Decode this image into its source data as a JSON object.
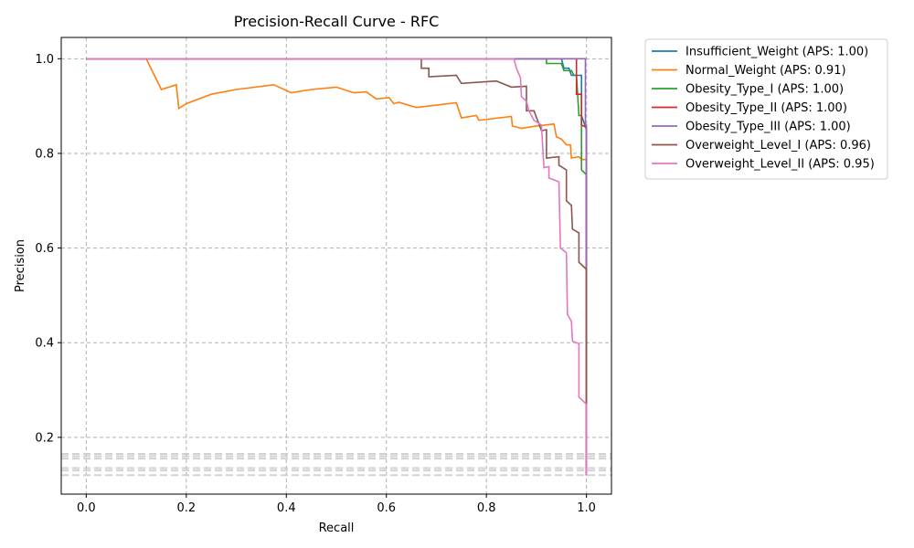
{
  "chart_data": {
    "type": "line",
    "title": "Precision-Recall Curve - RFC",
    "xlabel": "Recall",
    "ylabel": "Precision",
    "xlim": [
      -0.05,
      1.05
    ],
    "ylim": [
      0.08,
      1.045
    ],
    "xticks": [
      0.0,
      0.2,
      0.4,
      0.6,
      0.8,
      1.0
    ],
    "yticks": [
      0.2,
      0.4,
      0.6,
      0.8,
      1.0
    ],
    "grid": true,
    "legend_position": "outside-top-right",
    "baselines": [
      0.12,
      0.13,
      0.135,
      0.155,
      0.16,
      0.165
    ],
    "series": [
      {
        "name": "Insufficient_Weight (APS: 1.00)",
        "color": "#1f77b4",
        "points": [
          [
            0,
            1
          ],
          [
            0.95,
            1
          ],
          [
            0.955,
            0.98
          ],
          [
            0.965,
            0.98
          ],
          [
            0.97,
            0.965
          ],
          [
            0.99,
            0.965
          ],
          [
            0.99,
            0.88
          ],
          [
            1.0,
            0.85
          ],
          [
            1.0,
            0.12
          ]
        ]
      },
      {
        "name": "Normal_Weight (APS: 0.91)",
        "color": "#ff7f0e",
        "points": [
          [
            0,
            1
          ],
          [
            0.12,
            1
          ],
          [
            0.15,
            0.935
          ],
          [
            0.18,
            0.945
          ],
          [
            0.185,
            0.895
          ],
          [
            0.2,
            0.905
          ],
          [
            0.25,
            0.925
          ],
          [
            0.3,
            0.935
          ],
          [
            0.375,
            0.945
          ],
          [
            0.41,
            0.928
          ],
          [
            0.45,
            0.935
          ],
          [
            0.5,
            0.94
          ],
          [
            0.535,
            0.928
          ],
          [
            0.56,
            0.93
          ],
          [
            0.58,
            0.915
          ],
          [
            0.605,
            0.918
          ],
          [
            0.615,
            0.905
          ],
          [
            0.625,
            0.908
          ],
          [
            0.66,
            0.897
          ],
          [
            0.7,
            0.902
          ],
          [
            0.74,
            0.907
          ],
          [
            0.75,
            0.875
          ],
          [
            0.78,
            0.88
          ],
          [
            0.785,
            0.87
          ],
          [
            0.85,
            0.878
          ],
          [
            0.852,
            0.858
          ],
          [
            0.87,
            0.853
          ],
          [
            0.9,
            0.858
          ],
          [
            0.935,
            0.862
          ],
          [
            0.94,
            0.835
          ],
          [
            0.95,
            0.83
          ],
          [
            0.96,
            0.818
          ],
          [
            0.968,
            0.818
          ],
          [
            0.97,
            0.79
          ],
          [
            0.985,
            0.793
          ],
          [
            0.99,
            0.787
          ],
          [
            1.0,
            0.787
          ],
          [
            1.0,
            0.12
          ]
        ]
      },
      {
        "name": "Obesity_Type_I (APS: 1.00)",
        "color": "#2ca02c",
        "points": [
          [
            0,
            1
          ],
          [
            0.92,
            1
          ],
          [
            0.92,
            0.99
          ],
          [
            0.95,
            0.99
          ],
          [
            0.955,
            0.975
          ],
          [
            0.97,
            0.975
          ],
          [
            0.975,
            0.965
          ],
          [
            0.98,
            0.965
          ],
          [
            0.985,
            0.88
          ],
          [
            0.99,
            0.88
          ],
          [
            0.99,
            0.765
          ],
          [
            1.0,
            0.755
          ],
          [
            1.0,
            0.12
          ]
        ]
      },
      {
        "name": "Obesity_Type_II (APS: 1.00)",
        "color": "#d62728",
        "points": [
          [
            0,
            1
          ],
          [
            0.98,
            1
          ],
          [
            0.98,
            0.925
          ],
          [
            0.99,
            0.925
          ],
          [
            0.99,
            0.86
          ],
          [
            1.0,
            0.855
          ],
          [
            1.0,
            0.12
          ]
        ]
      },
      {
        "name": "Obesity_Type_III (APS: 1.00)",
        "color": "#9467bd",
        "points": [
          [
            0,
            1
          ],
          [
            0.998,
            1
          ],
          [
            0.998,
            0.86
          ],
          [
            1.0,
            0.86
          ],
          [
            1.0,
            0.12
          ]
        ]
      },
      {
        "name": "Overweight_Level_I (APS: 0.96)",
        "color": "#8c564b",
        "points": [
          [
            0,
            1
          ],
          [
            0.67,
            1
          ],
          [
            0.67,
            0.98
          ],
          [
            0.685,
            0.98
          ],
          [
            0.685,
            0.962
          ],
          [
            0.74,
            0.965
          ],
          [
            0.75,
            0.948
          ],
          [
            0.82,
            0.953
          ],
          [
            0.85,
            0.94
          ],
          [
            0.88,
            0.942
          ],
          [
            0.88,
            0.89
          ],
          [
            0.895,
            0.89
          ],
          [
            0.91,
            0.848
          ],
          [
            0.92,
            0.85
          ],
          [
            0.92,
            0.79
          ],
          [
            0.945,
            0.793
          ],
          [
            0.945,
            0.775
          ],
          [
            0.96,
            0.765
          ],
          [
            0.96,
            0.7
          ],
          [
            0.97,
            0.69
          ],
          [
            0.972,
            0.64
          ],
          [
            0.985,
            0.632
          ],
          [
            0.985,
            0.57
          ],
          [
            1.0,
            0.555
          ],
          [
            1.0,
            0.12
          ]
        ]
      },
      {
        "name": "Overweight_Level_II (APS: 0.95)",
        "color": "#e377c2",
        "points": [
          [
            0,
            1
          ],
          [
            0.855,
            1
          ],
          [
            0.86,
            0.98
          ],
          [
            0.868,
            0.96
          ],
          [
            0.87,
            0.92
          ],
          [
            0.88,
            0.91
          ],
          [
            0.885,
            0.89
          ],
          [
            0.895,
            0.87
          ],
          [
            0.91,
            0.86
          ],
          [
            0.915,
            0.77
          ],
          [
            0.925,
            0.772
          ],
          [
            0.925,
            0.748
          ],
          [
            0.945,
            0.74
          ],
          [
            0.948,
            0.6
          ],
          [
            0.96,
            0.59
          ],
          [
            0.962,
            0.46
          ],
          [
            0.97,
            0.445
          ],
          [
            0.972,
            0.403
          ],
          [
            0.985,
            0.398
          ],
          [
            0.985,
            0.285
          ],
          [
            1.0,
            0.27
          ],
          [
            1.0,
            0.12
          ]
        ]
      }
    ]
  }
}
